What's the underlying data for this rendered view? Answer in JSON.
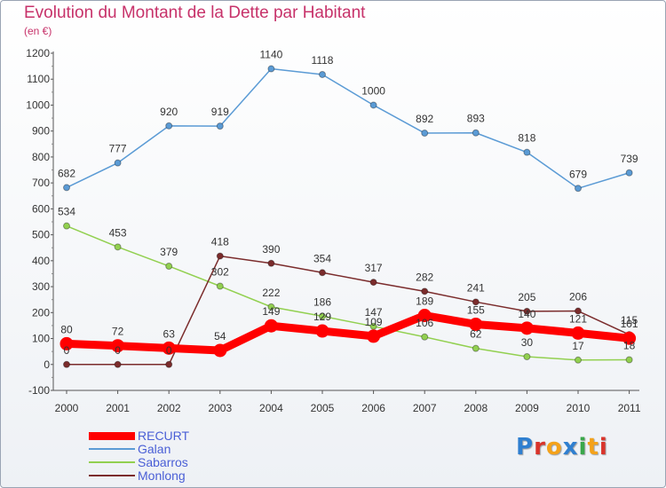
{
  "header": {
    "title": "Evolution du Montant de la Dette par Habitant",
    "subtitle": "(en €)"
  },
  "logo": {
    "text": "Proxiti",
    "colors": [
      "#2f7fd0",
      "#d9342b",
      "#f4a21a",
      "#2f7fd0",
      "#3aa74a",
      "#f4a21a",
      "#d9342b"
    ]
  },
  "chart_data": {
    "type": "line",
    "title": "Evolution du Montant de la Dette par Habitant",
    "subtitle": "(en €)",
    "xlabel": "",
    "ylabel": "",
    "x": [
      "2000",
      "2001",
      "2002",
      "2003",
      "2004",
      "2005",
      "2006",
      "2007",
      "2008",
      "2009",
      "2010",
      "2011"
    ],
    "ylim": [
      -100,
      1200
    ],
    "yticks": [
      -100,
      0,
      100,
      200,
      300,
      400,
      500,
      600,
      700,
      800,
      900,
      1000,
      1100,
      1200
    ],
    "grid": false,
    "legend_position": "bottom-left",
    "series": [
      {
        "name": "RECURT",
        "color": "#ff0000",
        "values": [
          80,
          72,
          63,
          54,
          149,
          129,
          109,
          189,
          155,
          140,
          121,
          101
        ],
        "labels": [
          "80",
          "72",
          "63",
          "54",
          "149",
          "129",
          "109",
          "189",
          "155",
          "140",
          "121",
          "101"
        ]
      },
      {
        "name": "Galan",
        "color": "#5b9bd5",
        "values": [
          682,
          777,
          920,
          919,
          1140,
          1118,
          1000,
          892,
          893,
          818,
          679,
          739
        ],
        "labels": [
          "682",
          "777",
          "920",
          "919",
          "1140",
          "1118",
          "1000",
          "892",
          "893",
          "818",
          "679",
          "739"
        ]
      },
      {
        "name": "Sabarros",
        "color": "#92d050",
        "values": [
          534,
          453,
          379,
          302,
          222,
          186,
          147,
          106,
          62,
          30,
          17,
          18
        ],
        "labels": [
          "534",
          "453",
          "379",
          "302",
          "222",
          "186",
          "147",
          "106",
          "62",
          "30",
          "17",
          "18"
        ]
      },
      {
        "name": "Monlong",
        "color": "#7b2c2c",
        "values": [
          0,
          0,
          0,
          418,
          390,
          354,
          317,
          282,
          241,
          205,
          206,
          115
        ],
        "labels": [
          "0",
          "0",
          "0",
          "418",
          "390",
          "354",
          "317",
          "282",
          "241",
          "205",
          "206",
          "115"
        ]
      }
    ]
  }
}
